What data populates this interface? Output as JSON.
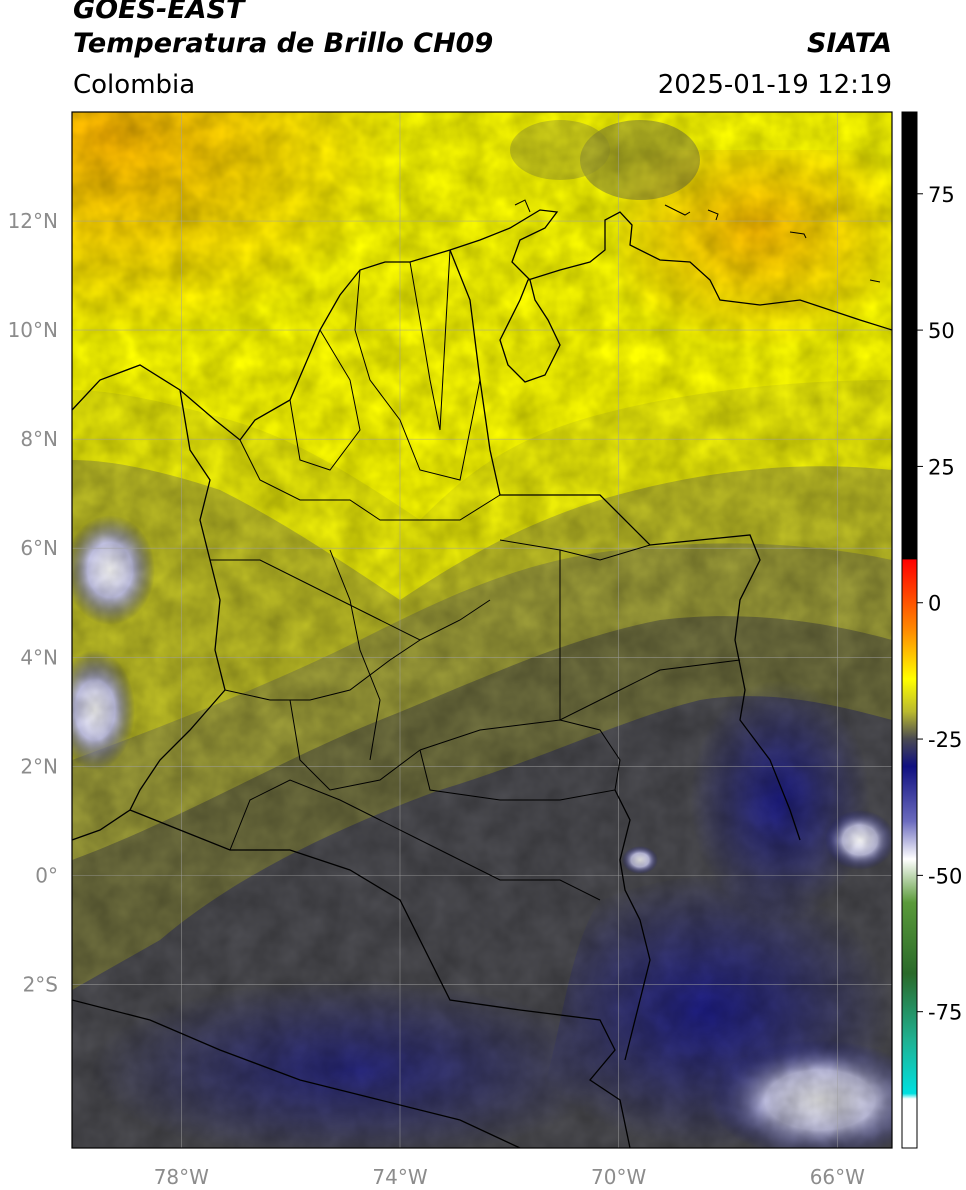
{
  "header": {
    "satellite": "GOES-EAST",
    "product": "Temperatura de Brillo CH09",
    "institution": "SIATA",
    "region": "Colombia",
    "datetime": "2025-01-19 12:19"
  },
  "map": {
    "lat_range": [
      -5.0,
      14.0
    ],
    "lon_range": [
      -80.0,
      -65.0
    ],
    "lat_ticks": [
      {
        "value": 12,
        "label": "12°N"
      },
      {
        "value": 10,
        "label": "10°N"
      },
      {
        "value": 8,
        "label": "8°N"
      },
      {
        "value": 6,
        "label": "6°N"
      },
      {
        "value": 4,
        "label": "4°N"
      },
      {
        "value": 2,
        "label": "2°N"
      },
      {
        "value": 0,
        "label": "0°"
      },
      {
        "value": -2,
        "label": "2°S"
      }
    ],
    "lon_ticks": [
      {
        "value": -78,
        "label": "78°W"
      },
      {
        "value": -74,
        "label": "74°W"
      },
      {
        "value": -70,
        "label": "70°W"
      },
      {
        "value": -66,
        "label": "66°W"
      }
    ],
    "grid": true
  },
  "colorbar": {
    "range": [
      -100,
      90
    ],
    "ticks": [
      {
        "value": 75,
        "label": "75"
      },
      {
        "value": 50,
        "label": "50"
      },
      {
        "value": 25,
        "label": "25"
      },
      {
        "value": 0,
        "label": "0"
      },
      {
        "value": -25,
        "label": "-25"
      },
      {
        "value": -50,
        "label": "-50"
      },
      {
        "value": -75,
        "label": "-75"
      }
    ],
    "stops": [
      {
        "value": 90,
        "color": "#000000"
      },
      {
        "value": 8,
        "color": "#000000"
      },
      {
        "value": 7.9,
        "color": "#ff0000"
      },
      {
        "value": -5,
        "color": "#ff8a00"
      },
      {
        "value": -14,
        "color": "#ffff00"
      },
      {
        "value": -20,
        "color": "#b9b92e"
      },
      {
        "value": -25,
        "color": "#4a4a52"
      },
      {
        "value": -30,
        "color": "#101080"
      },
      {
        "value": -40,
        "color": "#6a6abd"
      },
      {
        "value": -47,
        "color": "#ffffff"
      },
      {
        "value": -55,
        "color": "#5a9a3a"
      },
      {
        "value": -68,
        "color": "#2a6a2a"
      },
      {
        "value": -80,
        "color": "#20b090"
      },
      {
        "value": -90,
        "color": "#00e0e0"
      },
      {
        "value": -91,
        "color": "#ffffff"
      },
      {
        "value": -100,
        "color": "#ffffff"
      }
    ]
  }
}
